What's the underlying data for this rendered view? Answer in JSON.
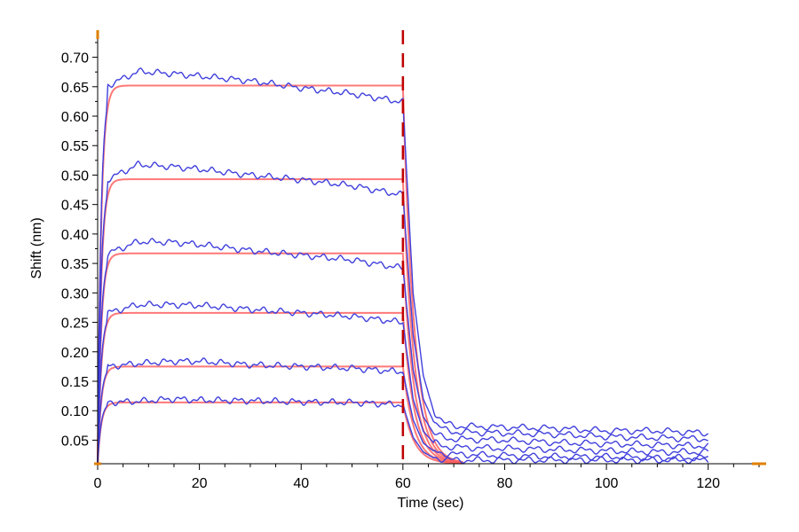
{
  "chart_data": {
    "type": "line",
    "title": "",
    "xlabel": "Time (sec)",
    "ylabel": "Shift (nm)",
    "xlim": [
      0,
      130
    ],
    "ylim": [
      0.01,
      0.74
    ],
    "x_ticks": [
      0,
      20,
      40,
      60,
      80,
      100,
      120
    ],
    "y_ticks": [
      0.05,
      0.1,
      0.15,
      0.2,
      0.25,
      0.3,
      0.35,
      0.4,
      0.45,
      0.5,
      0.55,
      0.6,
      0.65,
      0.7
    ],
    "grid": false,
    "legend": "none",
    "association_end": 60,
    "measured_end": 120,
    "event_marker": {
      "x": 60,
      "color": "#c00000",
      "dash": true
    },
    "colors": {
      "measured": "#4040dd",
      "fit": "#ff6060",
      "axis": "#000000",
      "axis_end_marker": "#e08000"
    },
    "series": [
      {
        "plateau_fit": 0.652,
        "assoc": [
          [
            2,
            0.652
          ],
          [
            8,
            0.676
          ],
          [
            15,
            0.672
          ],
          [
            20,
            0.668
          ],
          [
            30,
            0.66
          ],
          [
            40,
            0.648
          ],
          [
            50,
            0.638
          ],
          [
            60,
            0.624
          ]
        ],
        "dissoc": [
          [
            62,
            0.3
          ],
          [
            64,
            0.16
          ],
          [
            66,
            0.1
          ],
          [
            68,
            0.08
          ],
          [
            70,
            0.074
          ],
          [
            80,
            0.072
          ],
          [
            90,
            0.07
          ],
          [
            100,
            0.066
          ],
          [
            110,
            0.066
          ],
          [
            120,
            0.062
          ]
        ]
      },
      {
        "plateau_fit": 0.493,
        "assoc": [
          [
            2,
            0.493
          ],
          [
            8,
            0.518
          ],
          [
            15,
            0.514
          ],
          [
            20,
            0.51
          ],
          [
            30,
            0.5
          ],
          [
            40,
            0.492
          ],
          [
            50,
            0.482
          ],
          [
            60,
            0.466
          ]
        ],
        "dissoc": [
          [
            62,
            0.23
          ],
          [
            64,
            0.12
          ],
          [
            66,
            0.082
          ],
          [
            68,
            0.068
          ],
          [
            70,
            0.064
          ],
          [
            80,
            0.062
          ],
          [
            90,
            0.06
          ],
          [
            100,
            0.056
          ],
          [
            110,
            0.054
          ],
          [
            120,
            0.052
          ]
        ]
      },
      {
        "plateau_fit": 0.367,
        "assoc": [
          [
            2,
            0.367
          ],
          [
            8,
            0.387
          ],
          [
            15,
            0.386
          ],
          [
            20,
            0.382
          ],
          [
            30,
            0.372
          ],
          [
            40,
            0.364
          ],
          [
            50,
            0.356
          ],
          [
            60,
            0.342
          ]
        ],
        "dissoc": [
          [
            62,
            0.17
          ],
          [
            64,
            0.09
          ],
          [
            66,
            0.062
          ],
          [
            68,
            0.054
          ],
          [
            70,
            0.052
          ],
          [
            80,
            0.05
          ],
          [
            90,
            0.046
          ],
          [
            100,
            0.044
          ],
          [
            110,
            0.042
          ],
          [
            120,
            0.04
          ]
        ]
      },
      {
        "plateau_fit": 0.266,
        "assoc": [
          [
            2,
            0.266
          ],
          [
            8,
            0.28
          ],
          [
            15,
            0.28
          ],
          [
            20,
            0.279
          ],
          [
            30,
            0.272
          ],
          [
            40,
            0.266
          ],
          [
            50,
            0.26
          ],
          [
            60,
            0.25
          ]
        ],
        "dissoc": [
          [
            62,
            0.12
          ],
          [
            64,
            0.065
          ],
          [
            66,
            0.046
          ],
          [
            68,
            0.04
          ],
          [
            70,
            0.038
          ],
          [
            80,
            0.036
          ],
          [
            90,
            0.034
          ],
          [
            100,
            0.032
          ],
          [
            110,
            0.03
          ],
          [
            120,
            0.03
          ]
        ]
      },
      {
        "plateau_fit": 0.175,
        "assoc": [
          [
            2,
            0.175
          ],
          [
            8,
            0.18
          ],
          [
            15,
            0.184
          ],
          [
            20,
            0.184
          ],
          [
            30,
            0.178
          ],
          [
            40,
            0.175
          ],
          [
            50,
            0.172
          ],
          [
            60,
            0.166
          ]
        ],
        "dissoc": [
          [
            62,
            0.085
          ],
          [
            64,
            0.045
          ],
          [
            66,
            0.032
          ],
          [
            68,
            0.028
          ],
          [
            70,
            0.026
          ],
          [
            80,
            0.024
          ],
          [
            90,
            0.022
          ],
          [
            100,
            0.022
          ],
          [
            110,
            0.02
          ],
          [
            120,
            0.02
          ]
        ]
      },
      {
        "plateau_fit": 0.114,
        "assoc": [
          [
            2,
            0.114
          ],
          [
            8,
            0.116
          ],
          [
            15,
            0.12
          ],
          [
            20,
            0.118
          ],
          [
            30,
            0.117
          ],
          [
            40,
            0.115
          ],
          [
            50,
            0.114
          ],
          [
            60,
            0.11
          ]
        ],
        "dissoc": [
          [
            62,
            0.055
          ],
          [
            64,
            0.03
          ],
          [
            66,
            0.02
          ],
          [
            68,
            0.018
          ],
          [
            70,
            0.016
          ],
          [
            80,
            0.016
          ],
          [
            90,
            0.016
          ],
          [
            100,
            0.016
          ],
          [
            110,
            0.016
          ],
          [
            120,
            0.016
          ]
        ]
      }
    ]
  }
}
